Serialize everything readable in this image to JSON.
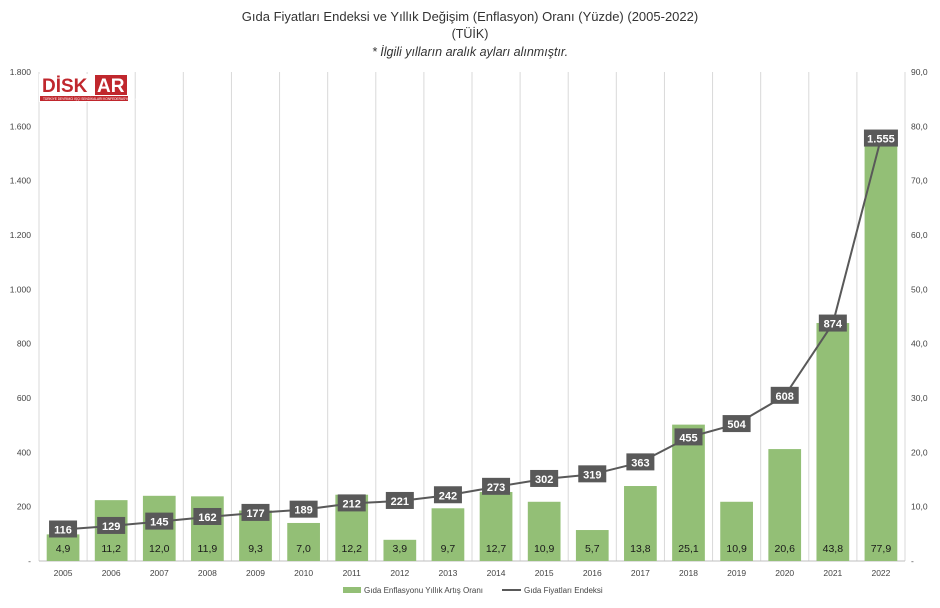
{
  "chart_data": {
    "type": "bar+line",
    "title": "Gıda Fiyatları Endeksi ve Yıllık Değişim (Enflasyon) Oranı (Yüzde) (2005-2022)",
    "subtitle": "(TÜİK)",
    "note": "* İlgili yılların aralık ayları alınmıştır.",
    "categories": [
      "2005",
      "2006",
      "2007",
      "2008",
      "2009",
      "2010",
      "2011",
      "2012",
      "2013",
      "2014",
      "2015",
      "2016",
      "2017",
      "2018",
      "2019",
      "2020",
      "2021",
      "2022"
    ],
    "series": [
      {
        "name": "Gıda Enflasyonu Yıllık Artış Oranı",
        "type": "bar",
        "axis": "right",
        "color": "#93bf76",
        "values": [
          4.9,
          11.2,
          12.0,
          11.9,
          9.3,
          7.0,
          12.2,
          3.9,
          9.7,
          12.7,
          10.9,
          5.7,
          13.8,
          25.1,
          10.9,
          20.6,
          43.8,
          77.9
        ],
        "labels": [
          "4,9",
          "11,2",
          "12,0",
          "11,9",
          "9,3",
          "7,0",
          "12,2",
          "3,9",
          "9,7",
          "12,7",
          "10,9",
          "5,7",
          "13,8",
          "25,1",
          "10,9",
          "20,6",
          "43,8",
          "77,9"
        ]
      },
      {
        "name": "Gıda Fiyatları Endeksi",
        "type": "line",
        "axis": "left",
        "color": "#595959",
        "values": [
          116,
          129,
          145,
          162,
          177,
          189,
          212,
          221,
          242,
          273,
          302,
          319,
          363,
          455,
          504,
          608,
          874,
          1555
        ],
        "labels": [
          "116",
          "129",
          "145",
          "162",
          "177",
          "189",
          "212",
          "221",
          "242",
          "273",
          "302",
          "319",
          "363",
          "455",
          "504",
          "608",
          "874",
          "1.555"
        ]
      }
    ],
    "y_left": {
      "range": [
        0,
        1800
      ],
      "ticks": [
        0,
        200,
        400,
        600,
        800,
        1000,
        1200,
        1400,
        1600,
        1800
      ],
      "tick_labels": [
        "-",
        "200",
        "400",
        "600",
        "800",
        "1.000",
        "1.200",
        "1.400",
        "1.600",
        "1.800"
      ]
    },
    "y_right": {
      "range": [
        0,
        90
      ],
      "ticks": [
        0,
        10,
        20,
        30,
        40,
        50,
        60,
        70,
        80,
        90
      ],
      "tick_labels": [
        "-",
        "10,0",
        "20,0",
        "30,0",
        "40,0",
        "50,0",
        "60,0",
        "70,0",
        "80,0",
        "90,0"
      ]
    },
    "grid": "vertical",
    "legend": "bottom-center"
  },
  "logo": {
    "text_left": "DİSK",
    "text_right": "AR",
    "tagline": "TÜRKİYE DEVRİMCİ İŞÇİ SENDİKALARI KONFEDERASYONU ARAŞTIRMA MERKEZİ",
    "color_red": "#c0272d"
  }
}
